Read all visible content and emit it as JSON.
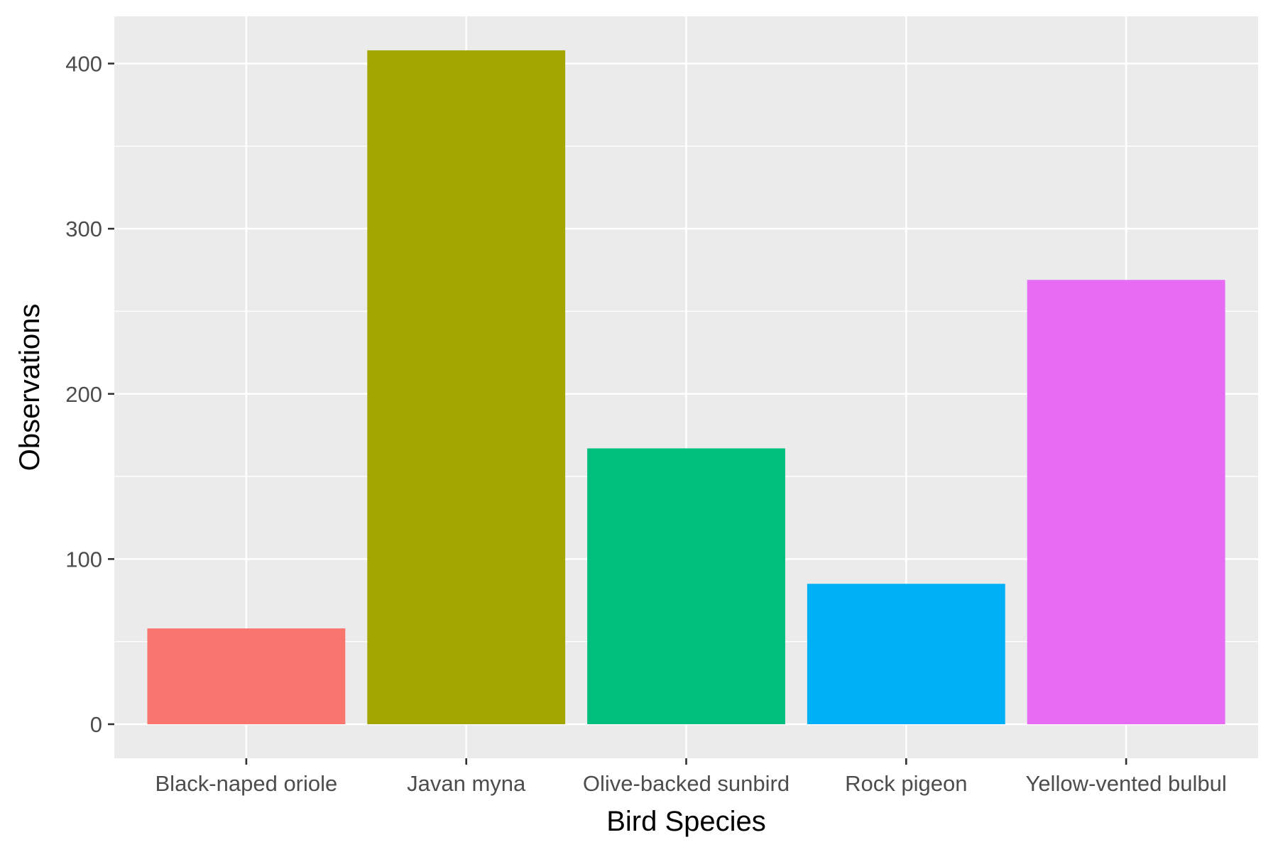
{
  "chart_data": {
    "type": "bar",
    "title": "",
    "xlabel": "Bird Species",
    "ylabel": "Observations",
    "categories": [
      "Black-naped oriole",
      "Javan myna",
      "Olive-backed sunbird",
      "Rock pigeon",
      "Yellow-vented bulbul"
    ],
    "values": [
      58,
      408,
      167,
      85,
      269
    ],
    "colors": [
      "#F8766D",
      "#A3A500",
      "#00BF7D",
      "#00B0F6",
      "#E76BF3"
    ],
    "ylim": [
      0,
      420
    ],
    "yticks": [
      0,
      100,
      200,
      300,
      400
    ],
    "ytick_labels": [
      "0",
      "100",
      "200",
      "300",
      "400"
    ],
    "grid": true,
    "legend": "none",
    "panel_background": "#EBEBEB",
    "grid_color": "#FFFFFF"
  }
}
